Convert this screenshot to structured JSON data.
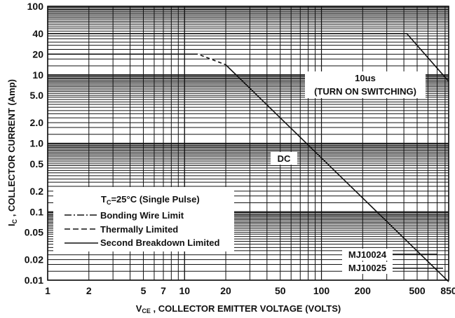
{
  "chart_data": {
    "type": "line",
    "x_scale": "log",
    "y_scale": "log",
    "xlim": [
      1,
      850
    ],
    "ylim": [
      0.01,
      100
    ],
    "grid": true,
    "xlabel_main": "V",
    "xlabel_sub": "CE",
    "xlabel_rest": " , COLLECTOR EMITTER VOLTAGE (VOLTS)",
    "ylabel_main": "I",
    "ylabel_sub": "C",
    "ylabel_rest": " , COLLECTOR CURRENT (Amp)",
    "x_ticks": [
      {
        "value": 1,
        "label": "1"
      },
      {
        "value": 2,
        "label": "2"
      },
      {
        "value": 5,
        "label": "5"
      },
      {
        "value": 7,
        "label": "7"
      },
      {
        "value": 10,
        "label": "10"
      },
      {
        "value": 20,
        "label": "20"
      },
      {
        "value": 50,
        "label": "50"
      },
      {
        "value": 100,
        "label": "100"
      },
      {
        "value": 200,
        "label": "200"
      },
      {
        "value": 500,
        "label": "500"
      },
      {
        "value": 850,
        "label": "850"
      }
    ],
    "y_ticks": [
      {
        "value": 100,
        "label": "100"
      },
      {
        "value": 40,
        "label": "40"
      },
      {
        "value": 20,
        "label": "20"
      },
      {
        "value": 10,
        "label": "10"
      },
      {
        "value": 5,
        "label": "5.0"
      },
      {
        "value": 2,
        "label": "2.0"
      },
      {
        "value": 1,
        "label": "1.0"
      },
      {
        "value": 0.5,
        "label": "0.5"
      },
      {
        "value": 0.2,
        "label": "0.2"
      },
      {
        "value": 0.1,
        "label": "0.1"
      },
      {
        "value": 0.05,
        "label": "0.05"
      },
      {
        "value": 0.02,
        "label": "0.02"
      },
      {
        "value": 0.01,
        "label": "0.01"
      }
    ],
    "series": [
      {
        "name": "DC",
        "style": "solid",
        "points": [
          [
            1,
            20
          ],
          [
            12.5,
            20
          ],
          [
            20,
            14
          ],
          [
            850,
            0.0095
          ]
        ]
      },
      {
        "name": "10us",
        "style": "solid",
        "points": [
          [
            1,
            40
          ],
          [
            420,
            40
          ],
          [
            850,
            8
          ]
        ]
      }
    ],
    "annotations": {
      "dc": "DC",
      "pulse_line1": "10us",
      "pulse_line2": "(TURN ON SWITCHING)",
      "mj10024": "MJ10024",
      "mj10025": "MJ10025"
    },
    "legend": {
      "title_main": "T",
      "title_sub": "C",
      "title_rest": "=25°C (Single Pulse)",
      "entries": [
        {
          "label": "Bonding Wire Limit",
          "style": "dash-dot"
        },
        {
          "label": "Thermally Limited",
          "style": "dashed"
        },
        {
          "label": "Second Breakdown Limited",
          "style": "solid"
        }
      ],
      "position": "bottom-left"
    }
  }
}
